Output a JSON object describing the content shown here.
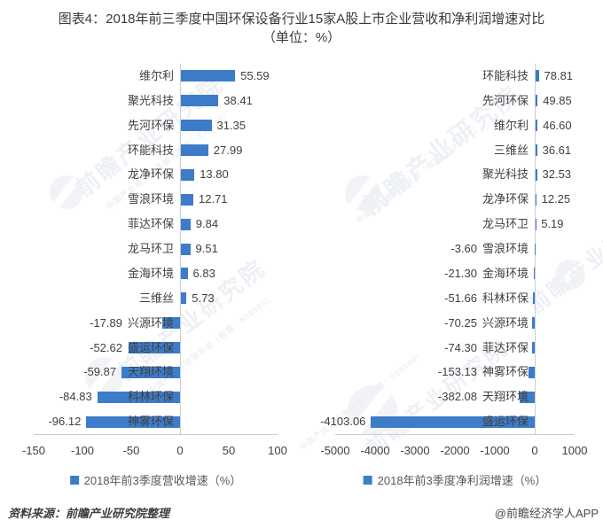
{
  "page": {
    "title": "图表4：2018年前三季度中国环保设备行业15家A股上市企业营收和净利润增速对比（单位：%）"
  },
  "colors": {
    "bar": "#3d7cc9",
    "axis_line": "#c9ced6",
    "text": "#404040",
    "legend_text": "#595959",
    "title_text": "#3a3a3a",
    "watermark": "#edf0f5"
  },
  "chart_data": [
    {
      "type": "bar",
      "orientation": "horizontal",
      "title": "",
      "legend": "2018年前3季度营收增速（%）",
      "legend_position": "bottom",
      "grid": false,
      "xlabel": "",
      "ylabel": "",
      "xlim": [
        -150,
        100
      ],
      "xticks": [
        -150,
        -100,
        -50,
        0,
        50,
        100
      ],
      "categories": [
        "维尔利",
        "聚光科技",
        "先河环保",
        "环能科技",
        "龙净环保",
        "雪浪环境",
        "菲达环保",
        "龙马环卫",
        "金海环境",
        "三维丝",
        "兴源环境",
        "盛运环保",
        "天翔环境",
        "科林环保",
        "神雾环保"
      ],
      "values": [
        55.59,
        38.41,
        31.35,
        27.99,
        13.8,
        12.71,
        9.84,
        9.51,
        6.83,
        5.73,
        -17.89,
        -52.62,
        -59.87,
        -84.83,
        -96.12
      ]
    },
    {
      "type": "bar",
      "orientation": "horizontal",
      "title": "",
      "legend": "2018年前3季度净利润增速（%）",
      "legend_position": "bottom",
      "grid": false,
      "xlabel": "",
      "ylabel": "",
      "xlim": [
        -5000,
        1000
      ],
      "xticks": [
        -5000,
        -4000,
        -3000,
        -2000,
        -1000,
        0,
        1000
      ],
      "categories": [
        "环能科技",
        "先河环保",
        "维尔利",
        "三维丝",
        "聚光科技",
        "龙净环保",
        "龙马环卫",
        "雪浪环境",
        "金海环境",
        "科林环保",
        "兴源环境",
        "菲达环保",
        "神雾环保",
        "天翔环境",
        "盛运环保"
      ],
      "values": [
        78.81,
        49.85,
        46.6,
        36.61,
        32.53,
        12.25,
        5.19,
        -3.6,
        -21.3,
        -51.66,
        -70.25,
        -74.3,
        -153.13,
        -382.08,
        -4103.06
      ]
    }
  ],
  "footer": {
    "source": "资料来源：前瞻产业研究院整理",
    "credit": "@前瞻经济学人APP"
  },
  "watermark": {
    "brand": "前瞻产业研究院",
    "sub": "中国产业咨询领导者（股票：839599）"
  }
}
